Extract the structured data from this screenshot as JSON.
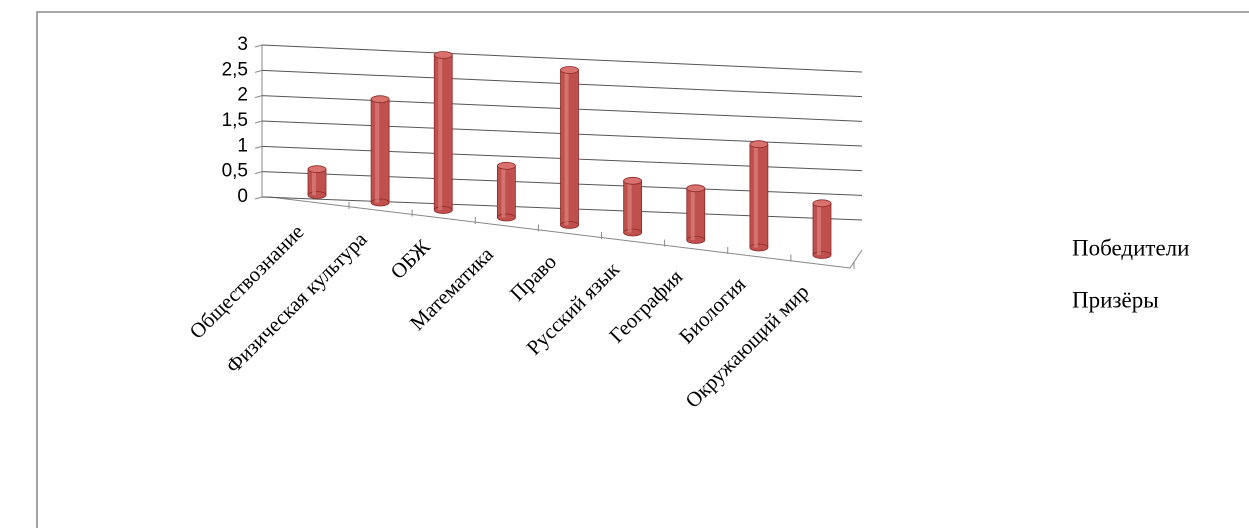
{
  "chart_data": {
    "type": "bar3d",
    "categories": [
      "Обществознание",
      "Физическая культура",
      "ОБЖ",
      "Математика",
      "Право",
      "Русский язык",
      "География",
      "Биология",
      "Окружающий мир"
    ],
    "series": [
      {
        "name": "Победители",
        "color": "#c0504d",
        "values": [
          0.5,
          2,
          3,
          1,
          3,
          1,
          1,
          2,
          1
        ]
      },
      {
        "name": "Призёры",
        "color": "#4f81bd",
        "values": [
          null,
          null,
          null,
          null,
          null,
          null,
          null,
          null,
          null
        ]
      }
    ],
    "ylim": [
      0,
      3
    ],
    "yticks": [
      0,
      {
        "value": 0.5,
        "label": "0,5"
      },
      1,
      {
        "value": 1.5,
        "label": "1,5"
      },
      2,
      {
        "value": 2.5,
        "label": "2,5"
      },
      3
    ],
    "grid": true
  }
}
